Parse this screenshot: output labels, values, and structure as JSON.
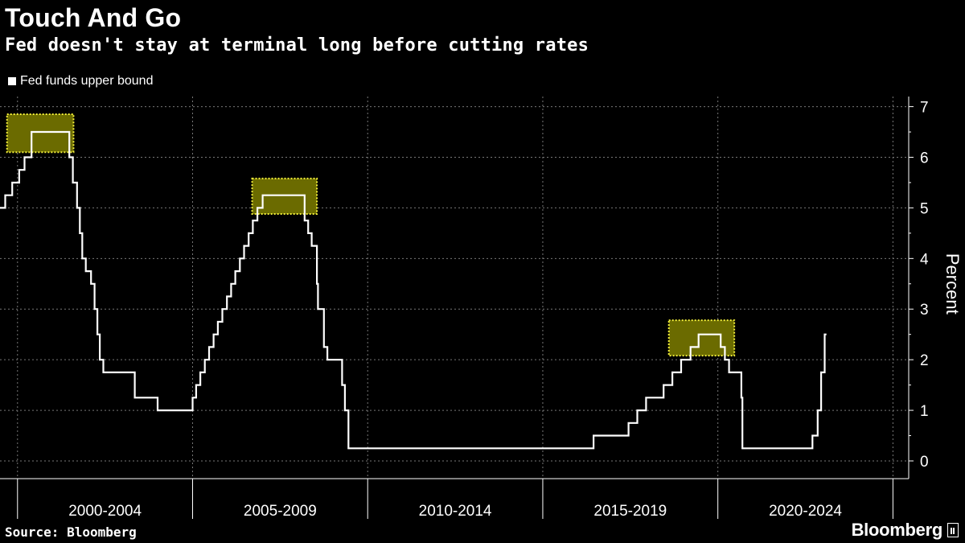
{
  "header": {
    "title": "Touch And Go",
    "subtitle": "Fed doesn't stay at terminal long before cutting rates"
  },
  "legend": {
    "label": "Fed funds upper bound"
  },
  "footer": {
    "source": "Source: Bloomberg",
    "brand": "Bloomberg"
  },
  "colors": {
    "background": "#000000",
    "line": "#ffffff",
    "highlight_fill": "#6b6b00",
    "highlight_border": "#f2ef3a",
    "grid": "#777777"
  },
  "chart_data": {
    "type": "line",
    "title": "Touch And Go",
    "subtitle": "Fed doesn't stay at terminal long before cutting rates",
    "ylabel": "Percent",
    "xlabel": "",
    "xlim": [
      1999.0,
      2024.95
    ],
    "ylim": [
      -0.35,
      7.2
    ],
    "y_ticks": [
      0,
      1,
      2,
      3,
      4,
      5,
      6,
      7
    ],
    "x_period_boundaries": [
      1999.5,
      2004.5,
      2009.5,
      2014.5,
      2019.5,
      2024.5
    ],
    "x_tick_labels": [
      {
        "label": "2000-2004",
        "center": 2002.0
      },
      {
        "label": "2005-2009",
        "center": 2007.0
      },
      {
        "label": "2010-2014",
        "center": 2012.0
      },
      {
        "label": "2015-2019",
        "center": 2017.0
      },
      {
        "label": "2020-2024",
        "center": 2022.0
      }
    ],
    "grid": true,
    "legend_position": "top-left",
    "series": [
      {
        "name": "Fed funds upper bound",
        "points": [
          [
            1999.0,
            5.0
          ],
          [
            1999.15,
            5.25
          ],
          [
            1999.35,
            5.5
          ],
          [
            1999.55,
            5.75
          ],
          [
            1999.7,
            6.0
          ],
          [
            1999.88,
            6.0
          ],
          [
            1999.9,
            6.5
          ],
          [
            2000.45,
            6.5
          ],
          [
            2000.98,
            6.0
          ],
          [
            2001.08,
            5.5
          ],
          [
            2001.2,
            5.0
          ],
          [
            2001.28,
            4.5
          ],
          [
            2001.35,
            4.0
          ],
          [
            2001.45,
            3.75
          ],
          [
            2001.6,
            3.5
          ],
          [
            2001.7,
            3.0
          ],
          [
            2001.78,
            2.5
          ],
          [
            2001.85,
            2.0
          ],
          [
            2001.95,
            1.75
          ],
          [
            2002.85,
            1.25
          ],
          [
            2003.5,
            1.0
          ],
          [
            2004.5,
            1.25
          ],
          [
            2004.6,
            1.5
          ],
          [
            2004.72,
            1.75
          ],
          [
            2004.85,
            2.0
          ],
          [
            2004.97,
            2.25
          ],
          [
            2005.1,
            2.5
          ],
          [
            2005.22,
            2.75
          ],
          [
            2005.35,
            3.0
          ],
          [
            2005.48,
            3.25
          ],
          [
            2005.6,
            3.5
          ],
          [
            2005.72,
            3.75
          ],
          [
            2005.85,
            4.0
          ],
          [
            2005.97,
            4.25
          ],
          [
            2006.1,
            4.5
          ],
          [
            2006.22,
            4.75
          ],
          [
            2006.35,
            5.0
          ],
          [
            2006.5,
            5.25
          ],
          [
            2007.7,
            4.75
          ],
          [
            2007.8,
            4.5
          ],
          [
            2007.9,
            4.25
          ],
          [
            2008.05,
            3.5
          ],
          [
            2008.08,
            3.0
          ],
          [
            2008.25,
            2.25
          ],
          [
            2008.35,
            2.0
          ],
          [
            2008.77,
            1.5
          ],
          [
            2008.85,
            1.0
          ],
          [
            2008.95,
            0.25
          ],
          [
            2015.95,
            0.5
          ],
          [
            2016.95,
            0.75
          ],
          [
            2017.2,
            1.0
          ],
          [
            2017.45,
            1.25
          ],
          [
            2017.95,
            1.5
          ],
          [
            2018.2,
            1.75
          ],
          [
            2018.45,
            2.0
          ],
          [
            2018.72,
            2.25
          ],
          [
            2018.95,
            2.5
          ],
          [
            2019.58,
            2.25
          ],
          [
            2019.7,
            2.0
          ],
          [
            2019.82,
            1.75
          ],
          [
            2020.17,
            1.25
          ],
          [
            2020.2,
            0.25
          ],
          [
            2022.2,
            0.5
          ],
          [
            2022.35,
            1.0
          ],
          [
            2022.45,
            1.75
          ],
          [
            2022.55,
            2.5
          ],
          [
            2022.6,
            2.5
          ]
        ]
      }
    ],
    "highlights": [
      {
        "x_start": 1999.2,
        "x_end": 2001.1,
        "y_start": 6.1,
        "y_end": 6.85
      },
      {
        "x_start": 2006.2,
        "x_end": 2008.05,
        "y_start": 4.88,
        "y_end": 5.58
      },
      {
        "x_start": 2018.1,
        "x_end": 2019.97,
        "y_start": 2.08,
        "y_end": 2.78
      }
    ]
  }
}
